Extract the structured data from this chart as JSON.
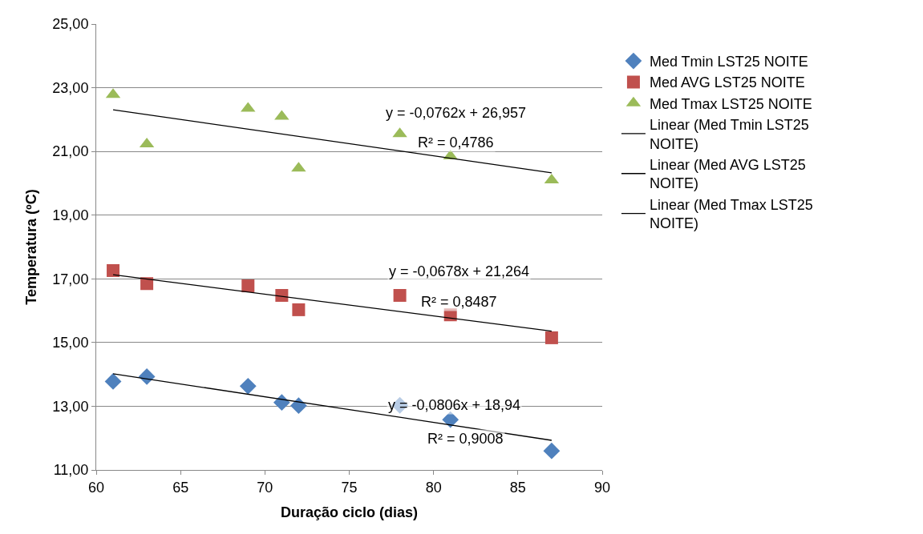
{
  "chart_data": {
    "type": "scatter",
    "xlabel": "Duração ciclo (dias)",
    "ylabel": "Temperatura (ºC)",
    "xlim": [
      60,
      90
    ],
    "xticks": [
      60,
      65,
      70,
      75,
      80,
      85,
      90
    ],
    "ylim": [
      11,
      25
    ],
    "yticks": [
      {
        "value": 11,
        "label": "11,00"
      },
      {
        "value": 13,
        "label": "13,00"
      },
      {
        "value": 15,
        "label": "15,00"
      },
      {
        "value": 17,
        "label": "17,00"
      },
      {
        "value": 19,
        "label": "19,00"
      },
      {
        "value": 21,
        "label": "21,00"
      },
      {
        "value": 23,
        "label": "23,00"
      },
      {
        "value": 25,
        "label": "25,00"
      }
    ],
    "grid": "y",
    "legend": "right",
    "x": [
      61,
      63,
      69,
      71,
      72,
      78,
      81,
      87
    ],
    "series": [
      {
        "name": "Med Tmin LST25 NOITE",
        "color": "#4f81bd",
        "marker": "diamond",
        "values": [
          13.78,
          13.93,
          13.63,
          13.12,
          13.02,
          13.03,
          12.58,
          11.6
        ]
      },
      {
        "name": "Med AVG LST25 NOITE",
        "color": "#c0504d",
        "marker": "square",
        "values": [
          17.26,
          16.85,
          16.78,
          16.48,
          16.03,
          16.48,
          15.87,
          15.15
        ]
      },
      {
        "name": "Med Tmax LST25 NOITE",
        "color": "#9bbb59",
        "marker": "triangle",
        "values": [
          22.78,
          21.23,
          22.35,
          22.1,
          20.47,
          21.55,
          20.85,
          20.1
        ]
      },
      {
        "name": "Linear (Med Tmin LST25 NOITE)",
        "type": "line",
        "color": "#000000",
        "values": [
          14.02,
          null,
          null,
          null,
          null,
          null,
          null,
          11.93
        ]
      },
      {
        "name": "Linear (Med AVG LST25 NOITE)",
        "type": "line",
        "color": "#000000",
        "values": [
          17.13,
          null,
          null,
          null,
          null,
          null,
          null,
          15.36
        ]
      },
      {
        "name": "Linear (Med Tmax LST25 NOITE)",
        "type": "line",
        "color": "#000000",
        "values": [
          22.31,
          null,
          null,
          null,
          null,
          null,
          null,
          20.33
        ]
      }
    ],
    "annotations": [
      "y = -0,0762x + 26,957",
      "R² = 0,4786",
      "y = -0,0678x + 21,264",
      "R² = 0,8487",
      "y = -0,0806x + 18,94",
      "R² = 0,9008"
    ]
  }
}
